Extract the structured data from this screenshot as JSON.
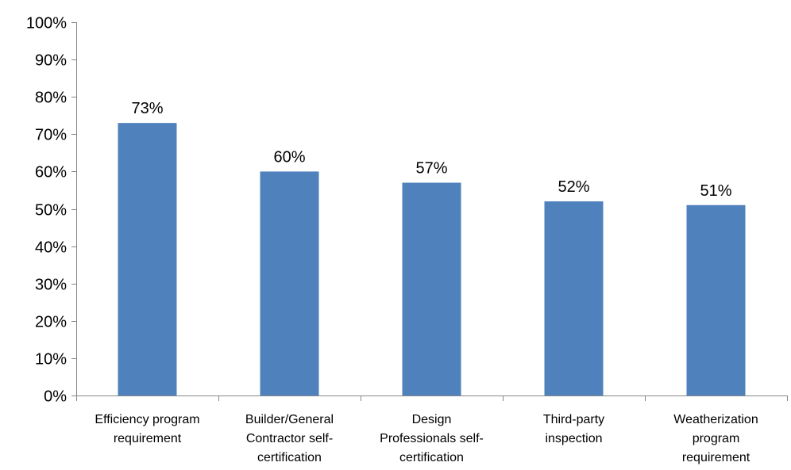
{
  "chart_data": {
    "type": "bar",
    "categories": [
      [
        "Efficiency program",
        "requirement"
      ],
      [
        "Builder/General",
        "Contractor self-",
        "certification"
      ],
      [
        "Design",
        "Professionals self-",
        "certification"
      ],
      [
        "Third-party",
        "inspection"
      ],
      [
        "Weatherization",
        "program",
        "requirement"
      ]
    ],
    "values": [
      73,
      60,
      57,
      52,
      51
    ],
    "data_labels": [
      "73%",
      "60%",
      "57%",
      "52%",
      "51%"
    ],
    "ylim": [
      0,
      100
    ],
    "yticks": [
      0,
      10,
      20,
      30,
      40,
      50,
      60,
      70,
      80,
      90,
      100
    ],
    "ytick_labels": [
      "0%",
      "10%",
      "20%",
      "30%",
      "40%",
      "50%",
      "60%",
      "70%",
      "80%",
      "90%",
      "100%"
    ],
    "bar_color": "#4F81BD",
    "grid": false,
    "legend": "none"
  }
}
